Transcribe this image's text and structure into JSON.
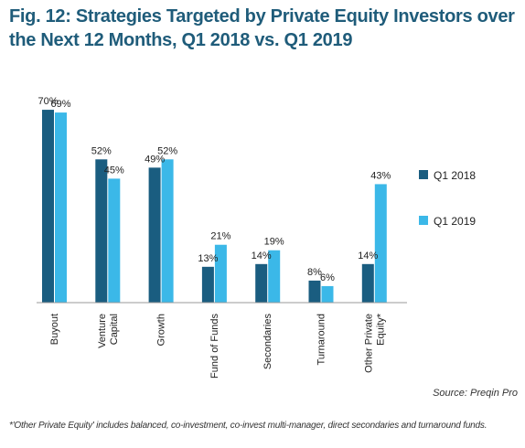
{
  "title": "Fig. 12: Strategies Targeted by Private Equity Investors over the Next 12 Months, Q1 2018 vs. Q1 2019",
  "source": "Source: Preqin Pro",
  "footnote": "*'Other Private Equity' includes balanced, co-investment, co-invest multi-manager, direct secondaries and turnaround funds.",
  "chart_data": {
    "type": "bar",
    "title": "Fig. 12: Strategies Targeted by Private Equity Investors over the Next 12 Months, Q1 2018 vs. Q1 2019",
    "categories": [
      "Buyout",
      "Venture Capital",
      "Growth",
      "Fund of Funds",
      "Secondaries",
      "Turnaround",
      "Other Private Equity*"
    ],
    "category_lines": [
      [
        "Buyout"
      ],
      [
        "Venture",
        "Capital"
      ],
      [
        "Growth"
      ],
      [
        "Fund of Funds"
      ],
      [
        "Secondaries"
      ],
      [
        "Turnaround"
      ],
      [
        "Other Private",
        "Equity*"
      ]
    ],
    "series": [
      {
        "name": "Q1 2018",
        "values": [
          70,
          52,
          49,
          13,
          14,
          8,
          14
        ],
        "color": "#1a5d80"
      },
      {
        "name": "Q1 2019",
        "values": [
          69,
          45,
          52,
          21,
          19,
          6,
          43
        ],
        "color": "#3bb8e8"
      }
    ],
    "value_suffix": "%",
    "ylim": [
      0,
      75
    ],
    "grid": false,
    "legend": "right"
  }
}
